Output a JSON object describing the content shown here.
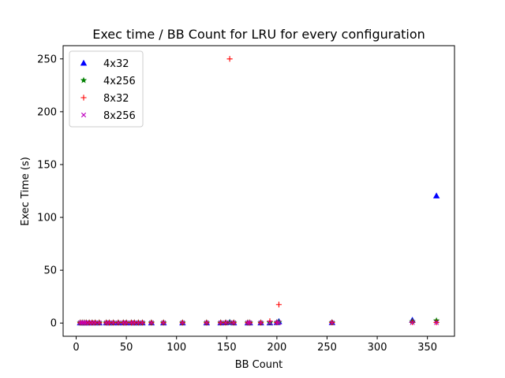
{
  "chart_data": {
    "type": "scatter",
    "title": "Exec time / BB Count for LRU for every configuration",
    "xlabel": "BB Count",
    "ylabel": "Exec Time (s)",
    "xlim": [
      -13,
      377
    ],
    "ylim": [
      -12.5,
      262.5
    ],
    "xticks": [
      0,
      50,
      100,
      150,
      200,
      250,
      300,
      350
    ],
    "yticks": [
      0,
      50,
      100,
      150,
      200,
      250
    ],
    "xtick_labels": [
      "0",
      "50",
      "100",
      "150",
      "200",
      "250",
      "300",
      "350"
    ],
    "ytick_labels": [
      "0",
      "50",
      "100",
      "150",
      "200",
      "250"
    ],
    "grid": false,
    "legend_position": "top-left",
    "series": [
      {
        "name": "4x32",
        "color": "#0000ff",
        "marker": "triangle",
        "points": [
          [
            4,
            0.3
          ],
          [
            6,
            0.3
          ],
          [
            8,
            0.3
          ],
          [
            10,
            0.3
          ],
          [
            13,
            0.3
          ],
          [
            16,
            0.3
          ],
          [
            19,
            0.3
          ],
          [
            23,
            0.3
          ],
          [
            30,
            0.3
          ],
          [
            33,
            0.3
          ],
          [
            37,
            0.3
          ],
          [
            42,
            0.3
          ],
          [
            47,
            0.3
          ],
          [
            50,
            0.3
          ],
          [
            55,
            0.3
          ],
          [
            58,
            0.3
          ],
          [
            62,
            0.3
          ],
          [
            66,
            0.3
          ],
          [
            75,
            0.3
          ],
          [
            87,
            0.3
          ],
          [
            106,
            0.3
          ],
          [
            130,
            0.3
          ],
          [
            144,
            0.3
          ],
          [
            149,
            0.4
          ],
          [
            153,
            0.8
          ],
          [
            157,
            0.3
          ],
          [
            171,
            0.3
          ],
          [
            173,
            0.3
          ],
          [
            184,
            0.3
          ],
          [
            193,
            0.3
          ],
          [
            200,
            0.6
          ],
          [
            202,
            1.6
          ],
          [
            255,
            0.6
          ],
          [
            335,
            2.8
          ],
          [
            359,
            120.5
          ]
        ]
      },
      {
        "name": "4x256",
        "color": "#008000",
        "marker": "star",
        "points": [
          [
            4,
            0.3
          ],
          [
            6,
            0.3
          ],
          [
            8,
            0.3
          ],
          [
            10,
            0.3
          ],
          [
            13,
            0.3
          ],
          [
            16,
            0.3
          ],
          [
            19,
            0.3
          ],
          [
            23,
            0.3
          ],
          [
            30,
            0.3
          ],
          [
            33,
            0.3
          ],
          [
            37,
            0.3
          ],
          [
            42,
            0.3
          ],
          [
            47,
            0.3
          ],
          [
            50,
            0.3
          ],
          [
            55,
            0.3
          ],
          [
            58,
            0.3
          ],
          [
            62,
            0.3
          ],
          [
            66,
            0.3
          ],
          [
            75,
            0.3
          ],
          [
            87,
            0.3
          ],
          [
            106,
            0.3
          ],
          [
            130,
            0.3
          ],
          [
            144,
            0.3
          ],
          [
            149,
            0.3
          ],
          [
            153,
            0.5
          ],
          [
            157,
            0.3
          ],
          [
            171,
            0.3
          ],
          [
            173,
            0.3
          ],
          [
            184,
            0.3
          ],
          [
            193,
            0.3
          ],
          [
            200,
            0.4
          ],
          [
            202,
            0.8
          ],
          [
            255,
            0.4
          ],
          [
            335,
            1.5
          ],
          [
            359,
            2.3
          ]
        ]
      },
      {
        "name": "8x32",
        "color": "#ff0000",
        "marker": "plus",
        "points": [
          [
            4,
            0.3
          ],
          [
            6,
            0.3
          ],
          [
            8,
            0.3
          ],
          [
            10,
            0.3
          ],
          [
            13,
            0.3
          ],
          [
            16,
            0.3
          ],
          [
            19,
            0.3
          ],
          [
            23,
            0.3
          ],
          [
            30,
            0.3
          ],
          [
            33,
            0.3
          ],
          [
            37,
            0.3
          ],
          [
            42,
            0.3
          ],
          [
            47,
            0.3
          ],
          [
            50,
            0.3
          ],
          [
            55,
            0.3
          ],
          [
            58,
            0.3
          ],
          [
            62,
            0.3
          ],
          [
            66,
            0.3
          ],
          [
            75,
            0.3
          ],
          [
            87,
            0.3
          ],
          [
            106,
            0.3
          ],
          [
            130,
            0.3
          ],
          [
            144,
            0.3
          ],
          [
            149,
            0.3
          ],
          [
            153,
            250.0
          ],
          [
            157,
            0.3
          ],
          [
            171,
            0.3
          ],
          [
            173,
            0.3
          ],
          [
            184,
            0.3
          ],
          [
            193,
            1.8
          ],
          [
            200,
            0.5
          ],
          [
            202,
            17.5
          ],
          [
            255,
            0.5
          ],
          [
            335,
            0.8
          ],
          [
            359,
            0.6
          ]
        ]
      },
      {
        "name": "8x256",
        "color": "#bf00bf",
        "marker": "x",
        "points": [
          [
            4,
            0.3
          ],
          [
            6,
            0.3
          ],
          [
            8,
            0.3
          ],
          [
            10,
            0.3
          ],
          [
            13,
            0.3
          ],
          [
            16,
            0.3
          ],
          [
            19,
            0.3
          ],
          [
            23,
            0.3
          ],
          [
            30,
            0.3
          ],
          [
            33,
            0.3
          ],
          [
            37,
            0.3
          ],
          [
            42,
            0.3
          ],
          [
            47,
            0.3
          ],
          [
            50,
            0.3
          ],
          [
            55,
            0.3
          ],
          [
            58,
            0.3
          ],
          [
            62,
            0.3
          ],
          [
            66,
            0.3
          ],
          [
            75,
            0.3
          ],
          [
            87,
            0.3
          ],
          [
            106,
            0.3
          ],
          [
            130,
            0.3
          ],
          [
            144,
            0.3
          ],
          [
            149,
            0.3
          ],
          [
            153,
            0.4
          ],
          [
            157,
            0.3
          ],
          [
            171,
            0.3
          ],
          [
            173,
            0.3
          ],
          [
            184,
            0.3
          ],
          [
            193,
            0.3
          ],
          [
            200,
            0.3
          ],
          [
            202,
            0.4
          ],
          [
            255,
            0.3
          ],
          [
            335,
            0.4
          ],
          [
            359,
            0.4
          ]
        ]
      }
    ]
  }
}
